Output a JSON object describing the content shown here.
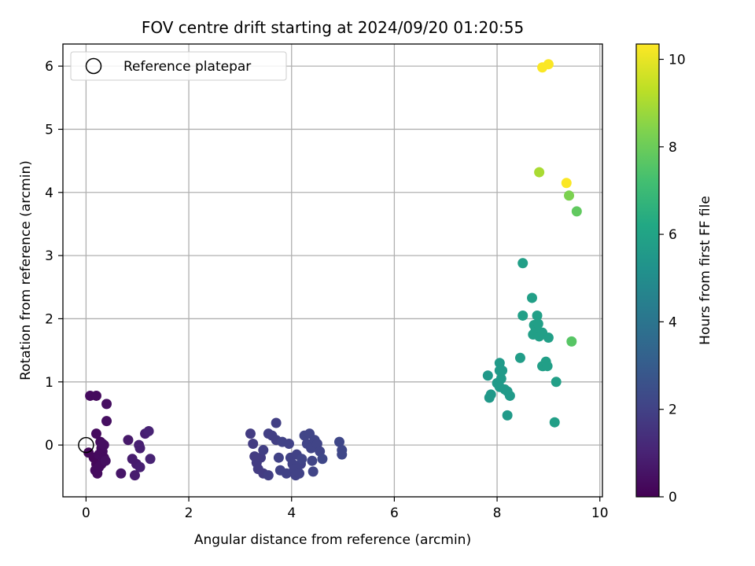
{
  "chart_data": {
    "type": "scatter",
    "title": "FOV centre drift starting at 2024/09/20 01:20:55",
    "xlabel": "Angular distance from reference (arcmin)",
    "ylabel": "Rotation from reference (arcmin)",
    "xlim": [
      -0.45,
      10.05
    ],
    "ylim": [
      -0.82,
      6.35
    ],
    "xticks": [
      0,
      2,
      4,
      6,
      8,
      10
    ],
    "yticks": [
      0,
      1,
      2,
      3,
      4,
      5,
      6
    ],
    "grid": true,
    "legend": {
      "position": "top-left",
      "label": "Reference platepar"
    },
    "reference_point": {
      "x": 0,
      "y": 0
    },
    "colorbar": {
      "label": "Hours from first FF file",
      "min": 0,
      "max": 10.35,
      "ticks": [
        0,
        2,
        4,
        6,
        8,
        10
      ],
      "colormap": "viridis"
    },
    "points": [
      {
        "x": 0.08,
        "y": 0.78,
        "h": 0.3
      },
      {
        "x": 0.2,
        "y": 0.78,
        "h": 0.3
      },
      {
        "x": 0.4,
        "y": 0.65,
        "h": 0.4
      },
      {
        "x": 0.4,
        "y": 0.38,
        "h": 0.4
      },
      {
        "x": 0.2,
        "y": 0.18,
        "h": 0.3
      },
      {
        "x": 0.05,
        "y": -0.12,
        "h": 0.2
      },
      {
        "x": 0.15,
        "y": -0.2,
        "h": 0.2
      },
      {
        "x": 0.2,
        "y": -0.3,
        "h": 0.2
      },
      {
        "x": 0.18,
        "y": -0.4,
        "h": 0.3
      },
      {
        "x": 0.22,
        "y": -0.45,
        "h": 0.3
      },
      {
        "x": 0.25,
        "y": -0.15,
        "h": 0.3
      },
      {
        "x": 0.28,
        "y": 0.05,
        "h": 0.3
      },
      {
        "x": 0.3,
        "y": -0.05,
        "h": 0.3
      },
      {
        "x": 0.32,
        "y": -0.1,
        "h": 0.3
      },
      {
        "x": 0.35,
        "y": -0.2,
        "h": 0.3
      },
      {
        "x": 0.3,
        "y": -0.3,
        "h": 0.3
      },
      {
        "x": 0.25,
        "y": -0.35,
        "h": 0.3
      },
      {
        "x": 0.35,
        "y": 0.0,
        "h": 0.4
      },
      {
        "x": 0.38,
        "y": -0.25,
        "h": 0.4
      },
      {
        "x": 0.32,
        "y": 0.02,
        "h": 0.4
      },
      {
        "x": 0.68,
        "y": -0.45,
        "h": 0.6
      },
      {
        "x": 0.82,
        "y": 0.08,
        "h": 0.7
      },
      {
        "x": 0.9,
        "y": -0.22,
        "h": 0.8
      },
      {
        "x": 0.95,
        "y": -0.48,
        "h": 0.8
      },
      {
        "x": 0.98,
        "y": -0.3,
        "h": 0.8
      },
      {
        "x": 1.05,
        "y": -0.05,
        "h": 0.9
      },
      {
        "x": 1.05,
        "y": -0.35,
        "h": 0.9
      },
      {
        "x": 1.15,
        "y": 0.18,
        "h": 0.9
      },
      {
        "x": 1.22,
        "y": 0.22,
        "h": 1.0
      },
      {
        "x": 1.25,
        "y": -0.22,
        "h": 1.0
      },
      {
        "x": 1.03,
        "y": 0.0,
        "h": 0.9
      },
      {
        "x": 3.2,
        "y": 0.18,
        "h": 1.8
      },
      {
        "x": 3.25,
        "y": 0.02,
        "h": 1.8
      },
      {
        "x": 3.28,
        "y": -0.18,
        "h": 1.8
      },
      {
        "x": 3.32,
        "y": -0.28,
        "h": 1.8
      },
      {
        "x": 3.35,
        "y": -0.38,
        "h": 1.8
      },
      {
        "x": 3.45,
        "y": -0.45,
        "h": 1.8
      },
      {
        "x": 3.4,
        "y": -0.2,
        "h": 1.8
      },
      {
        "x": 3.45,
        "y": -0.08,
        "h": 1.9
      },
      {
        "x": 3.55,
        "y": 0.18,
        "h": 1.9
      },
      {
        "x": 3.55,
        "y": -0.48,
        "h": 1.9
      },
      {
        "x": 3.62,
        "y": 0.15,
        "h": 1.9
      },
      {
        "x": 3.7,
        "y": 0.08,
        "h": 1.9
      },
      {
        "x": 3.7,
        "y": 0.35,
        "h": 1.9
      },
      {
        "x": 3.75,
        "y": -0.2,
        "h": 2.0
      },
      {
        "x": 3.78,
        "y": -0.4,
        "h": 2.0
      },
      {
        "x": 3.82,
        "y": 0.05,
        "h": 2.0
      },
      {
        "x": 3.9,
        "y": -0.45,
        "h": 2.0
      },
      {
        "x": 3.95,
        "y": 0.02,
        "h": 2.0
      },
      {
        "x": 3.98,
        "y": -0.2,
        "h": 2.0
      },
      {
        "x": 4.02,
        "y": -0.3,
        "h": 2.0
      },
      {
        "x": 4.05,
        "y": -0.38,
        "h": 2.0
      },
      {
        "x": 4.08,
        "y": -0.48,
        "h": 2.0
      },
      {
        "x": 4.1,
        "y": -0.15,
        "h": 2.0
      },
      {
        "x": 4.15,
        "y": -0.45,
        "h": 2.0
      },
      {
        "x": 4.18,
        "y": -0.3,
        "h": 2.0
      },
      {
        "x": 4.2,
        "y": -0.22,
        "h": 2.1
      },
      {
        "x": 4.25,
        "y": 0.15,
        "h": 2.1
      },
      {
        "x": 4.3,
        "y": 0.02,
        "h": 2.1
      },
      {
        "x": 4.35,
        "y": 0.18,
        "h": 2.1
      },
      {
        "x": 4.38,
        "y": -0.05,
        "h": 2.1
      },
      {
        "x": 4.42,
        "y": -0.42,
        "h": 2.1
      },
      {
        "x": 4.4,
        "y": -0.25,
        "h": 2.1
      },
      {
        "x": 4.45,
        "y": 0.08,
        "h": 2.1
      },
      {
        "x": 4.5,
        "y": 0.02,
        "h": 2.1
      },
      {
        "x": 4.55,
        "y": -0.1,
        "h": 2.1
      },
      {
        "x": 4.6,
        "y": -0.22,
        "h": 2.2
      },
      {
        "x": 4.93,
        "y": 0.05,
        "h": 2.2
      },
      {
        "x": 4.98,
        "y": -0.08,
        "h": 2.2
      },
      {
        "x": 4.98,
        "y": -0.15,
        "h": 2.2
      },
      {
        "x": 7.82,
        "y": 1.1,
        "h": 5.5
      },
      {
        "x": 7.85,
        "y": 0.75,
        "h": 5.5
      },
      {
        "x": 7.88,
        "y": 0.8,
        "h": 5.5
      },
      {
        "x": 8.0,
        "y": 0.98,
        "h": 5.6
      },
      {
        "x": 8.05,
        "y": 0.92,
        "h": 5.6
      },
      {
        "x": 8.05,
        "y": 1.18,
        "h": 5.6
      },
      {
        "x": 8.05,
        "y": 1.3,
        "h": 5.6
      },
      {
        "x": 8.08,
        "y": 1.05,
        "h": 5.6
      },
      {
        "x": 8.1,
        "y": 1.18,
        "h": 5.6
      },
      {
        "x": 8.15,
        "y": 0.88,
        "h": 5.6
      },
      {
        "x": 8.2,
        "y": 0.85,
        "h": 5.6
      },
      {
        "x": 8.2,
        "y": 0.47,
        "h": 5.6
      },
      {
        "x": 8.25,
        "y": 0.78,
        "h": 5.6
      },
      {
        "x": 8.45,
        "y": 1.38,
        "h": 5.7
      },
      {
        "x": 8.5,
        "y": 2.88,
        "h": 5.8
      },
      {
        "x": 8.5,
        "y": 2.05,
        "h": 5.8
      },
      {
        "x": 8.68,
        "y": 2.33,
        "h": 5.8
      },
      {
        "x": 8.7,
        "y": 1.75,
        "h": 5.8
      },
      {
        "x": 8.72,
        "y": 1.9,
        "h": 5.8
      },
      {
        "x": 8.75,
        "y": 1.82,
        "h": 5.8
      },
      {
        "x": 8.78,
        "y": 2.05,
        "h": 5.8
      },
      {
        "x": 8.8,
        "y": 1.92,
        "h": 5.8
      },
      {
        "x": 8.82,
        "y": 1.72,
        "h": 5.8
      },
      {
        "x": 8.88,
        "y": 1.78,
        "h": 5.8
      },
      {
        "x": 8.88,
        "y": 1.25,
        "h": 5.8
      },
      {
        "x": 8.9,
        "y": 1.25,
        "h": 5.8
      },
      {
        "x": 8.95,
        "y": 1.32,
        "h": 5.8
      },
      {
        "x": 8.98,
        "y": 1.25,
        "h": 5.8
      },
      {
        "x": 9.0,
        "y": 1.7,
        "h": 5.8
      },
      {
        "x": 9.12,
        "y": 0.36,
        "h": 5.8
      },
      {
        "x": 9.15,
        "y": 1.0,
        "h": 5.8
      },
      {
        "x": 9.45,
        "y": 1.64,
        "h": 7.6
      },
      {
        "x": 8.82,
        "y": 4.32,
        "h": 9.0
      },
      {
        "x": 9.35,
        "y": 4.15,
        "h": 10.3
      },
      {
        "x": 9.4,
        "y": 3.95,
        "h": 8.3
      },
      {
        "x": 9.55,
        "y": 3.7,
        "h": 7.8
      },
      {
        "x": 8.88,
        "y": 5.98,
        "h": 10.3
      },
      {
        "x": 9.0,
        "y": 6.03,
        "h": 10.3
      }
    ]
  }
}
